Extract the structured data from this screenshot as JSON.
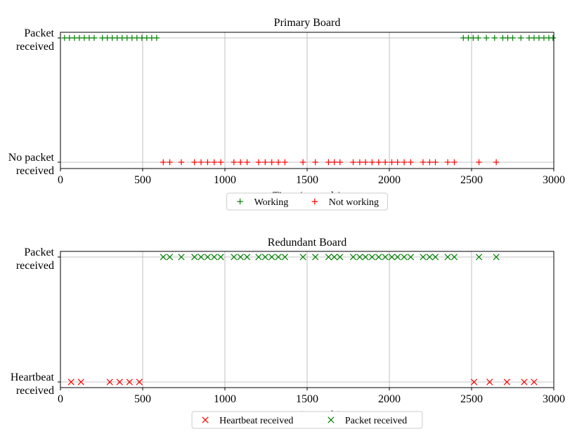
{
  "chart_data": [
    {
      "type": "scatter",
      "title": "Primary Board",
      "xlabel": "Time (seconds)",
      "xlim": [
        0,
        3000
      ],
      "xticks": [
        0,
        500,
        1000,
        1500,
        2000,
        2500,
        3000
      ],
      "yticks": [
        [
          "Packet",
          "received"
        ],
        [
          "No packet",
          "received"
        ]
      ],
      "grid": true,
      "legend_position": "below",
      "series": [
        {
          "name": "Working",
          "marker": "plus",
          "color": "#008000",
          "level": 1,
          "x": [
            25,
            55,
            85,
            115,
            145,
            175,
            205,
            255,
            285,
            315,
            345,
            375,
            405,
            435,
            465,
            495,
            525,
            555,
            585,
            2450,
            2480,
            2510,
            2540,
            2590,
            2640,
            2690,
            2720,
            2750,
            2800,
            2850,
            2880,
            2910,
            2940,
            2970,
            2995
          ]
        },
        {
          "name": "Not working",
          "marker": "plus",
          "color": "#ff0000",
          "level": 0,
          "x": [
            625,
            665,
            735,
            815,
            855,
            895,
            935,
            975,
            1055,
            1095,
            1135,
            1205,
            1245,
            1285,
            1325,
            1365,
            1475,
            1550,
            1630,
            1665,
            1700,
            1780,
            1820,
            1855,
            1895,
            1935,
            1975,
            2015,
            2050,
            2090,
            2130,
            2205,
            2245,
            2280,
            2355,
            2395,
            2545,
            2650
          ]
        }
      ]
    },
    {
      "type": "scatter",
      "title": "Redundant Board",
      "xlabel": "Time (seconds)",
      "xlim": [
        0,
        3000
      ],
      "xticks": [
        0,
        500,
        1000,
        1500,
        2000,
        2500,
        3000
      ],
      "yticks": [
        [
          "Packet",
          "received"
        ],
        [
          "Heartbeat",
          "received"
        ]
      ],
      "grid": true,
      "legend_position": "below",
      "series": [
        {
          "name": "Heartbeat received",
          "marker": "x",
          "color": "#ff0000",
          "level": 0,
          "x": [
            65,
            125,
            300,
            360,
            420,
            480,
            2515,
            2610,
            2715,
            2820,
            2880
          ]
        },
        {
          "name": "Packet received",
          "marker": "x",
          "color": "#008000",
          "level": 1,
          "x": [
            625,
            665,
            735,
            815,
            855,
            895,
            935,
            975,
            1055,
            1095,
            1135,
            1205,
            1245,
            1285,
            1325,
            1365,
            1475,
            1550,
            1630,
            1665,
            1700,
            1780,
            1820,
            1855,
            1895,
            1935,
            1975,
            2015,
            2050,
            2090,
            2130,
            2205,
            2245,
            2280,
            2355,
            2395,
            2545,
            2650
          ]
        }
      ]
    }
  ]
}
